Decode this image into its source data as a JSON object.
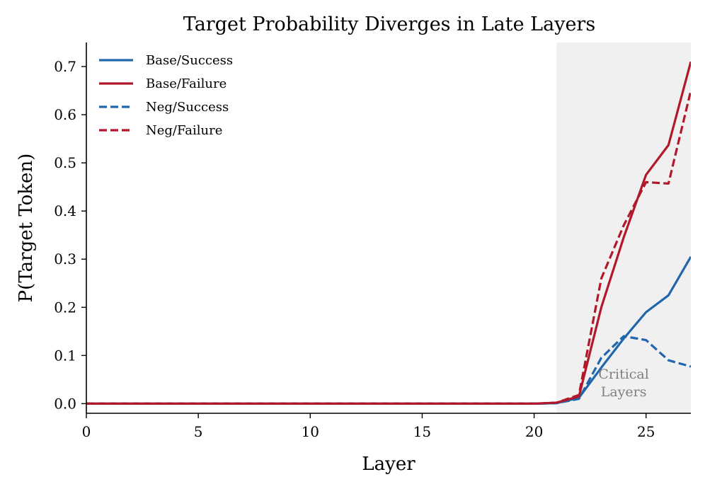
{
  "chart_data": {
    "type": "line",
    "title": "Target Probability Diverges in Late Layers",
    "xlabel": "Layer",
    "ylabel": "P(Target Token)",
    "xlim": [
      0,
      27
    ],
    "ylim": [
      -0.02,
      0.75
    ],
    "xticks": [
      0,
      5,
      10,
      15,
      20,
      25
    ],
    "yticks": [
      0.0,
      0.1,
      0.2,
      0.3,
      0.4,
      0.5,
      0.6,
      0.7
    ],
    "xtick_labels": [
      "0",
      "5",
      "10",
      "15",
      "20",
      "25"
    ],
    "ytick_labels": [
      "0.0",
      "0.1",
      "0.2",
      "0.3",
      "0.4",
      "0.5",
      "0.6",
      "0.7"
    ],
    "grid": false,
    "legend_position": "top-left",
    "shaded_region": {
      "x_from": 21,
      "x_to": 27,
      "color": "#f0f0f0"
    },
    "annotation": {
      "lines": [
        "Critical",
        "Layers"
      ],
      "x": 24,
      "y": 0.052
    },
    "x": [
      0,
      1,
      2,
      3,
      4,
      5,
      6,
      7,
      8,
      9,
      10,
      11,
      12,
      13,
      14,
      15,
      16,
      17,
      18,
      19,
      20,
      21,
      22,
      23,
      24,
      25,
      26,
      27
    ],
    "series": [
      {
        "name": "Base/Success",
        "color": "#2166ac",
        "style": "solid",
        "values": [
          0,
          0,
          0,
          0,
          0,
          0,
          0,
          0,
          0,
          0,
          0,
          0,
          0,
          0,
          0,
          0,
          0,
          0,
          0,
          0,
          0,
          0.001,
          0.012,
          0.075,
          0.135,
          0.19,
          0.225,
          0.305
        ]
      },
      {
        "name": "Base/Failure",
        "color": "#b2182b",
        "style": "solid",
        "values": [
          0,
          0,
          0,
          0,
          0,
          0,
          0,
          0,
          0,
          0,
          0,
          0,
          0,
          0,
          0,
          0,
          0,
          0,
          0,
          0,
          0,
          0.002,
          0.015,
          0.2,
          0.345,
          0.475,
          0.537,
          0.71
        ]
      },
      {
        "name": "Neg/Success",
        "color": "#2166ac",
        "style": "dashed",
        "values": [
          0,
          0,
          0,
          0,
          0,
          0,
          0,
          0,
          0,
          0,
          0,
          0,
          0,
          0,
          0,
          0,
          0,
          0,
          0,
          0,
          0,
          0.001,
          0.01,
          0.095,
          0.14,
          0.132,
          0.09,
          0.077
        ]
      },
      {
        "name": "Neg/Failure",
        "color": "#b2182b",
        "style": "dashed",
        "values": [
          0,
          0,
          0,
          0,
          0,
          0,
          0,
          0,
          0,
          0,
          0,
          0,
          0,
          0,
          0,
          0,
          0,
          0,
          0,
          0,
          0,
          0.002,
          0.018,
          0.26,
          0.37,
          0.46,
          0.457,
          0.65
        ]
      }
    ]
  }
}
